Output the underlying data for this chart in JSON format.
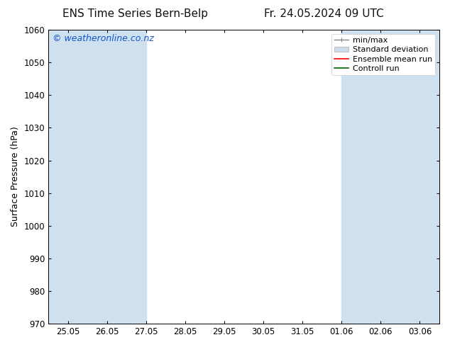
{
  "title_left": "ENS Time Series Bern-Belp",
  "title_right": "Fr. 24.05.2024 09 UTC",
  "ylabel": "Surface Pressure (hPa)",
  "ylim": [
    970,
    1060
  ],
  "yticks": [
    970,
    980,
    990,
    1000,
    1010,
    1020,
    1030,
    1040,
    1050,
    1060
  ],
  "xtick_labels": [
    "25.05",
    "26.05",
    "27.05",
    "28.05",
    "29.05",
    "30.05",
    "31.05",
    "01.06",
    "02.06",
    "03.06"
  ],
  "band_color": "#cfe0ef",
  "bg_color": "#ffffff",
  "watermark": "© weatheronline.co.nz",
  "watermark_color": "#1155cc",
  "legend_entries": [
    "min/max",
    "Standard deviation",
    "Ensemble mean run",
    "Controll run"
  ],
  "legend_line_colors": [
    "#888888",
    "#bbbbbb",
    "#ff0000",
    "#006600"
  ],
  "title_fontsize": 11,
  "axis_label_fontsize": 9,
  "tick_fontsize": 8.5,
  "watermark_fontsize": 9,
  "legend_fontsize": 8
}
